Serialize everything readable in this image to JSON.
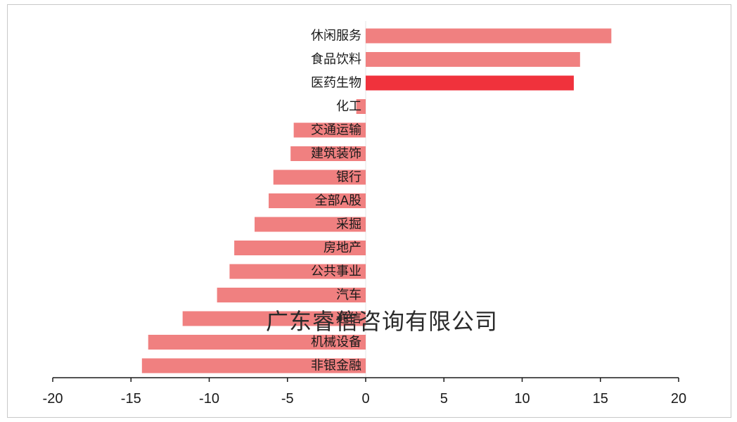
{
  "chart_data": {
    "type": "bar",
    "orientation": "horizontal",
    "categories": [
      "休闲服务",
      "食品饮料",
      "医药生物",
      "化工",
      "交通运输",
      "建筑装饰",
      "银行",
      "全部A股",
      "采掘",
      "房地产",
      "公共事业",
      "汽车",
      "通信",
      "机械设备",
      "非银金融"
    ],
    "values": [
      15.7,
      13.7,
      13.3,
      -0.6,
      -4.6,
      -4.8,
      -5.9,
      -6.2,
      -7.1,
      -8.4,
      -8.7,
      -9.5,
      -11.7,
      -13.9,
      -14.3
    ],
    "highlight_index": 2,
    "xlim": [
      -20,
      20
    ],
    "xticks": [
      "-20",
      "-15",
      "-10",
      "-5",
      "0",
      "5",
      "10",
      "15",
      "20"
    ],
    "title": "",
    "xlabel": "",
    "ylabel": "",
    "grid": false,
    "legend": "none"
  },
  "colors": {
    "bar": "#f08080",
    "highlight_bar": "#f0323c",
    "axis": "#1a1a1a"
  },
  "watermark": "广东睿信咨询有限公司"
}
